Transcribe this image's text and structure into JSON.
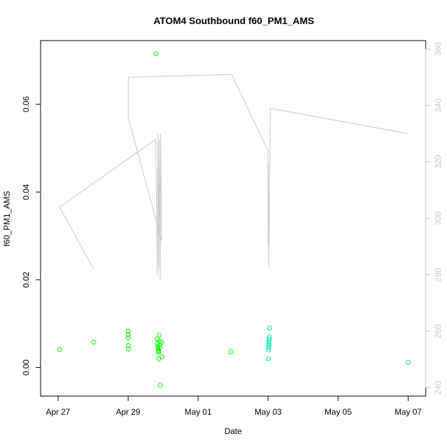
{
  "chart_data": {
    "type": "scatter",
    "title": "ATOM4 Southbound f60_PM1_AMS",
    "xlabel": "Date",
    "ylabel": "f60_PM1_AMS",
    "x_ticks": [
      "Apr 27",
      "Apr 29",
      "May 01",
      "May 03",
      "May 05",
      "May 07"
    ],
    "xlim": [
      "2018-04-26T12:00",
      "2018-05-07T12:00"
    ],
    "ylim": [
      -0.0065,
      0.0745
    ],
    "y_ticks": [
      "0.00",
      "0.02",
      "0.04",
      "0.06"
    ],
    "y2lim": [
      237,
      363
    ],
    "y2_ticks": [
      "240",
      "260",
      "280",
      "300",
      "320",
      "340",
      "360"
    ],
    "grid": false,
    "series": [
      {
        "kind": "points",
        "marker": "open-circle",
        "color": "#00ff00",
        "points": [
          [
            "2018-04-27T01:00",
            0.0041
          ],
          [
            "2018-04-28T00:30",
            0.0058
          ],
          [
            "2018-04-29T00:00",
            0.0083
          ],
          [
            "2018-04-29T00:05",
            0.0075
          ],
          [
            "2018-04-29T00:08",
            0.0068
          ],
          [
            "2018-04-29T00:10",
            0.005
          ],
          [
            "2018-04-29T00:12",
            0.0042
          ],
          [
            "2018-04-29T19:00",
            0.0715
          ],
          [
            "2018-04-29T20:00",
            0.0065
          ],
          [
            "2018-04-29T20:10",
            0.0055
          ],
          [
            "2018-04-29T20:20",
            0.0048
          ],
          [
            "2018-04-29T20:30",
            0.0044
          ],
          [
            "2018-04-29T20:40",
            0.004
          ],
          [
            "2018-04-29T20:50",
            0.0038
          ],
          [
            "2018-04-29T21:00",
            0.0035
          ],
          [
            "2018-04-29T21:10",
            0.002
          ],
          [
            "2018-04-29T21:20",
            0.0074
          ],
          [
            "2018-04-29T21:30",
            0.006
          ],
          [
            "2018-04-29T21:40",
            0.0052
          ],
          [
            "2018-04-29T21:50",
            0.0045
          ],
          [
            "2018-04-29T22:00",
            -0.004
          ],
          [
            "2018-04-29T23:00",
            0.0058
          ],
          [
            "2018-04-29T23:10",
            0.0025
          ],
          [
            "2018-05-01T22:30",
            0.0036
          ]
        ]
      },
      {
        "kind": "points",
        "marker": "open-circle",
        "color": "#00e8b0",
        "points": [
          [
            "2018-05-03T00:10",
            0.002
          ],
          [
            "2018-05-03T00:20",
            0.004
          ],
          [
            "2018-05-03T00:25",
            0.0045
          ],
          [
            "2018-05-03T00:30",
            0.005
          ],
          [
            "2018-05-03T00:35",
            0.0055
          ],
          [
            "2018-05-03T00:40",
            0.006
          ],
          [
            "2018-05-03T00:45",
            0.0065
          ],
          [
            "2018-05-03T00:50",
            0.007
          ],
          [
            "2018-05-03T01:00",
            0.009
          ],
          [
            "2018-05-07T00:00",
            0.0012
          ]
        ]
      },
      {
        "kind": "line",
        "axis": "right",
        "color": "#c8c8c8",
        "points": [
          [
            "2018-04-27T01:00",
            304
          ],
          [
            "2018-04-28T00:30",
            282
          ],
          [
            "2018-04-27T01:00",
            304
          ],
          [
            "2018-04-29T19:00",
            328
          ],
          [
            "2018-04-29T20:00",
            280
          ],
          [
            "2018-04-29T20:30",
            330
          ],
          [
            "2018-04-29T21:00",
            282
          ],
          [
            "2018-04-29T21:20",
            328
          ],
          [
            "2018-04-29T22:00",
            278
          ],
          [
            "2018-04-29T22:20",
            330
          ],
          [
            "2018-04-29T23:00",
            292
          ],
          [
            "2018-04-29T00:00",
            336
          ],
          [
            "2018-04-29T00:05",
            350
          ],
          [
            "2018-05-01T23:00",
            351
          ],
          [
            "2018-05-02T23:50",
            324
          ],
          [
            "2018-05-03T00:05",
            290
          ],
          [
            "2018-05-03T00:15",
            319
          ],
          [
            "2018-05-03T00:25",
            282
          ],
          [
            "2018-05-03T01:30",
            339
          ],
          [
            "2018-05-07T00:00",
            330
          ]
        ]
      }
    ]
  }
}
